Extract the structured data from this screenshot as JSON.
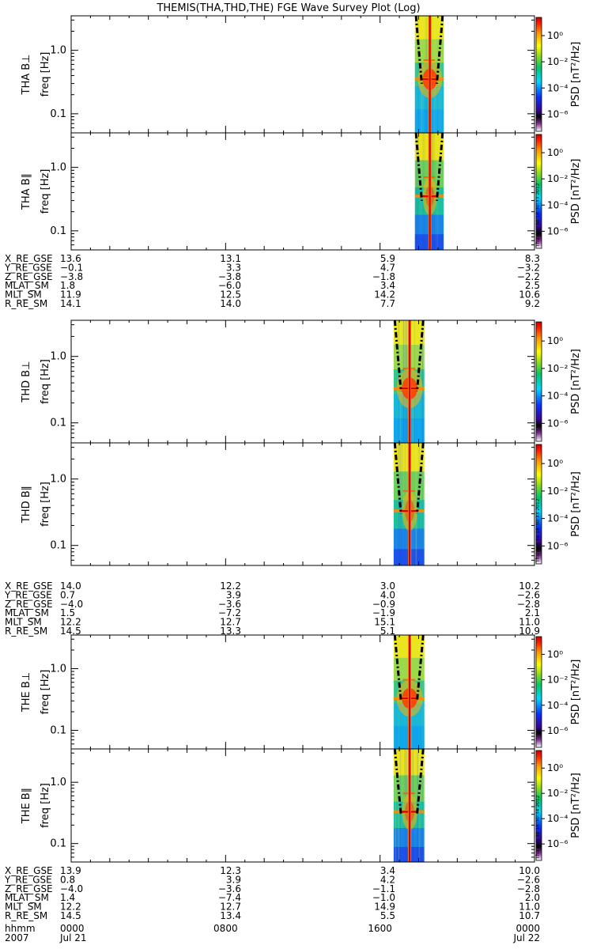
{
  "chart_data": {
    "type": "heatmap",
    "title": "THEMIS(THA,THD,THE) FGE Wave Survey Plot (Log)",
    "x_axis": {
      "row_labels": [
        "hhmm",
        "2007"
      ],
      "ticks": [
        {
          "hhmm": "0000",
          "date": "Jul 21"
        },
        {
          "hhmm": "0800",
          "date": ""
        },
        {
          "hhmm": "1600",
          "date": ""
        },
        {
          "hhmm": "0000",
          "date": "Jul 22"
        }
      ]
    },
    "y_axis": {
      "scale": "log",
      "range_hz": [
        0.05,
        3.5
      ],
      "tick_labels": [
        "1.0",
        "0.1"
      ],
      "unit_label": "freq [Hz]"
    },
    "colorbar": {
      "label": "PSD [nT²/Hz]",
      "scale": "log",
      "range": [
        1e-06,
        10
      ],
      "tick_labels": [
        "10⁰",
        "10⁻²",
        "10⁻⁴",
        "10⁻⁶"
      ]
    },
    "stamps": [
      "Thu Aug 30 18:30:33 2012",
      "Thu Aug 30 18:30:33 2012",
      "Thu Aug 30 18:30:34 2012"
    ],
    "probes": [
      {
        "name": "THA",
        "panels": [
          "THA B⊥",
          "THA B∥"
        ],
        "data_interval_hours": [
          17.8,
          19.3
        ],
        "peak_freq_hz": 0.35,
        "ephemeris": [
          {
            "label": "X_RE_GSE",
            "values": [
              "13.6",
              "13.1",
              "5.9",
              "8.3"
            ]
          },
          {
            "label": "Y_RE_GSE",
            "values": [
              "−0.1",
              "3.3",
              "4.7",
              "−3.2"
            ]
          },
          {
            "label": "Z_RE_GSE",
            "values": [
              "−3.8",
              "−3.8",
              "−1.8",
              "−2.2"
            ]
          },
          {
            "label": "MLAT_SM",
            "values": [
              "1.8",
              "−6.0",
              "3.4",
              "2.5"
            ]
          },
          {
            "label": "MLT_SM",
            "values": [
              "11.9",
              "12.5",
              "14.2",
              "10.6"
            ]
          },
          {
            "label": "R_RE_SM",
            "values": [
              "14.1",
              "14.0",
              "7.7",
              "9.2"
            ]
          }
        ]
      },
      {
        "name": "THD",
        "panels": [
          "THD B⊥",
          "THD B∥"
        ],
        "data_interval_hours": [
          16.7,
          18.3
        ],
        "peak_freq_hz": 0.33,
        "ephemeris": [
          {
            "label": "X_RE_GSE",
            "values": [
              "14.0",
              "12.2",
              "3.0",
              "10.2"
            ]
          },
          {
            "label": "Y_RE_GSE",
            "values": [
              "0.7",
              "3.9",
              "4.0",
              "−2.6"
            ]
          },
          {
            "label": "Z_RE_GSE",
            "values": [
              "−4.0",
              "−3.6",
              "−0.9",
              "−2.8"
            ]
          },
          {
            "label": "MLAT_SM",
            "values": [
              "1.5",
              "−7.2",
              "−1.9",
              "2.1"
            ]
          },
          {
            "label": "MLT_SM",
            "values": [
              "12.2",
              "12.7",
              "15.1",
              "11.0"
            ]
          },
          {
            "label": "R_RE_SM",
            "values": [
              "14.5",
              "13.3",
              "5.1",
              "10.9"
            ]
          }
        ]
      },
      {
        "name": "THE",
        "panels": [
          "THE B⊥",
          "THE B∥"
        ],
        "data_interval_hours": [
          16.7,
          18.3
        ],
        "peak_freq_hz": 0.33,
        "ephemeris": [
          {
            "label": "X_RE_GSE",
            "values": [
              "13.9",
              "12.3",
              "3.4",
              "10.0"
            ]
          },
          {
            "label": "Y_RE_GSE",
            "values": [
              "0.8",
              "3.9",
              "4.2",
              "−2.6"
            ]
          },
          {
            "label": "Z_RE_GSE",
            "values": [
              "−4.0",
              "−3.6",
              "−1.1",
              "−2.8"
            ]
          },
          {
            "label": "MLAT_SM",
            "values": [
              "1.4",
              "−7.4",
              "−1.0",
              "2.0"
            ]
          },
          {
            "label": "MLT_SM",
            "values": [
              "12.2",
              "12.7",
              "14.9",
              "11.0"
            ]
          },
          {
            "label": "R_RE_SM",
            "values": [
              "14.5",
              "13.4",
              "5.5",
              "10.7"
            ]
          }
        ]
      }
    ]
  }
}
